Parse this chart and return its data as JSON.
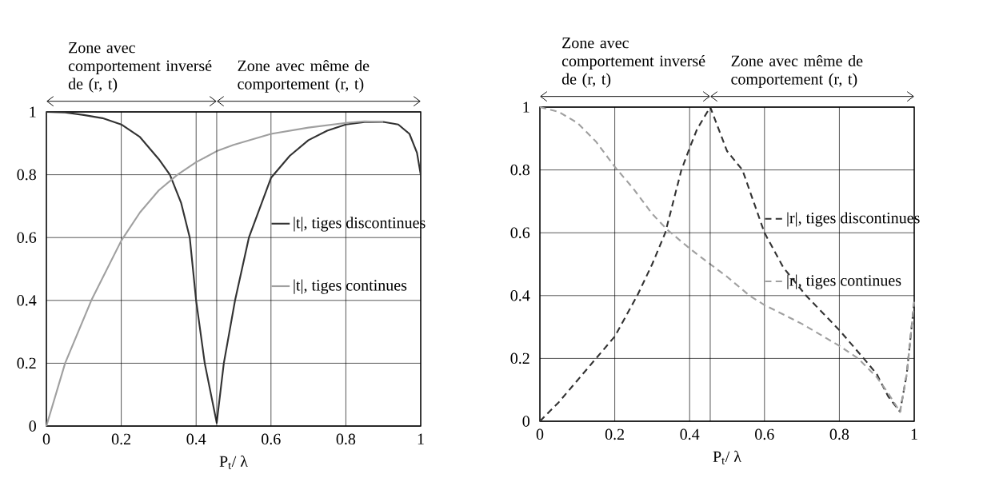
{
  "chart_data": [
    {
      "type": "line",
      "xlabel": "P$_{t}$/ λ",
      "xlim": [
        0,
        1
      ],
      "ylim": [
        0,
        1
      ],
      "xticks": [
        0,
        0.2,
        0.4,
        0.6,
        0.8,
        1
      ],
      "yticks": [
        0,
        0.2,
        0.4,
        0.6,
        0.8,
        1
      ],
      "grid": true,
      "legend": "right",
      "line_style": "solid",
      "annotations": [
        "Zone avec comportement inversé de (r, t)",
        "Zone avec même de comportement (r, t)"
      ],
      "ref_lines": [
        {
          "axis": "x",
          "value": 0.455,
          "color": "#000000"
        }
      ],
      "series": [
        {
          "name": "|t|, tiges discontinues",
          "color": "#333333",
          "x": [
            0,
            0.05,
            0.1,
            0.15,
            0.2,
            0.25,
            0.3,
            0.33,
            0.36,
            0.383,
            0.4,
            0.423,
            0.455,
            0.474,
            0.504,
            0.541,
            0.6,
            0.65,
            0.7,
            0.75,
            0.8,
            0.85,
            0.9,
            0.94,
            0.97,
            0.99,
            1
          ],
          "values": [
            1,
            0.998,
            0.99,
            0.98,
            0.96,
            0.92,
            0.85,
            0.8,
            0.71,
            0.6,
            0.4,
            0.2,
            0.01,
            0.2,
            0.4,
            0.6,
            0.79,
            0.86,
            0.91,
            0.94,
            0.96,
            0.968,
            0.968,
            0.96,
            0.93,
            0.87,
            0.8
          ]
        },
        {
          "name": "|t|, tiges continues",
          "color": "#a0a0a0",
          "x": [
            0,
            0.05,
            0.12,
            0.2,
            0.25,
            0.3,
            0.35,
            0.4,
            0.455,
            0.5,
            0.6,
            0.7,
            0.8,
            0.85,
            0.9
          ],
          "values": [
            0,
            0.2,
            0.4,
            0.59,
            0.68,
            0.75,
            0.8,
            0.84,
            0.875,
            0.895,
            0.93,
            0.95,
            0.965,
            0.97,
            0.968
          ]
        }
      ]
    },
    {
      "type": "line",
      "xlabel": "P$_{t}$/ λ",
      "xlim": [
        0,
        1
      ],
      "ylim": [
        0,
        1
      ],
      "xticks": [
        0,
        0.2,
        0.4,
        0.6,
        0.8,
        1
      ],
      "yticks": [
        0,
        0.2,
        0.4,
        0.6,
        0.8,
        1
      ],
      "grid": true,
      "legend": "right",
      "line_style": "dashed",
      "annotations": [
        "Zone avec comportement inversé de (r, t)",
        "Zone avec même de comportement (r, t)"
      ],
      "ref_lines": [
        {
          "axis": "x",
          "value": 0.455,
          "color": "#000000"
        }
      ],
      "series": [
        {
          "name": "|r|, tiges discontinues",
          "color": "#333333",
          "x": [
            0,
            0.05,
            0.1,
            0.15,
            0.2,
            0.26,
            0.3,
            0.335,
            0.378,
            0.4,
            0.42,
            0.455,
            0.5,
            0.541,
            0.6,
            0.65,
            0.711,
            0.8,
            0.865,
            0.9,
            0.93,
            0.962,
            0.98,
            1
          ],
          "values": [
            0,
            0.06,
            0.13,
            0.2,
            0.27,
            0.4,
            0.5,
            0.6,
            0.8,
            0.87,
            0.93,
            1,
            0.86,
            0.8,
            0.6,
            0.49,
            0.4,
            0.29,
            0.2,
            0.15,
            0.08,
            0.03,
            0.15,
            0.38
          ]
        },
        {
          "name": "|r|, tiges continues",
          "color": "#a0a0a0",
          "x": [
            0,
            0.05,
            0.1,
            0.15,
            0.2,
            0.25,
            0.3,
            0.34,
            0.4,
            0.455,
            0.5,
            0.56,
            0.6,
            0.7,
            0.8,
            0.85,
            0.9,
            0.93,
            0.962,
            0.98,
            1
          ],
          "values": [
            1,
            0.985,
            0.95,
            0.89,
            0.81,
            0.74,
            0.66,
            0.61,
            0.55,
            0.5,
            0.46,
            0.4,
            0.37,
            0.31,
            0.24,
            0.2,
            0.14,
            0.09,
            0.03,
            0.15,
            0.38
          ]
        }
      ]
    }
  ]
}
